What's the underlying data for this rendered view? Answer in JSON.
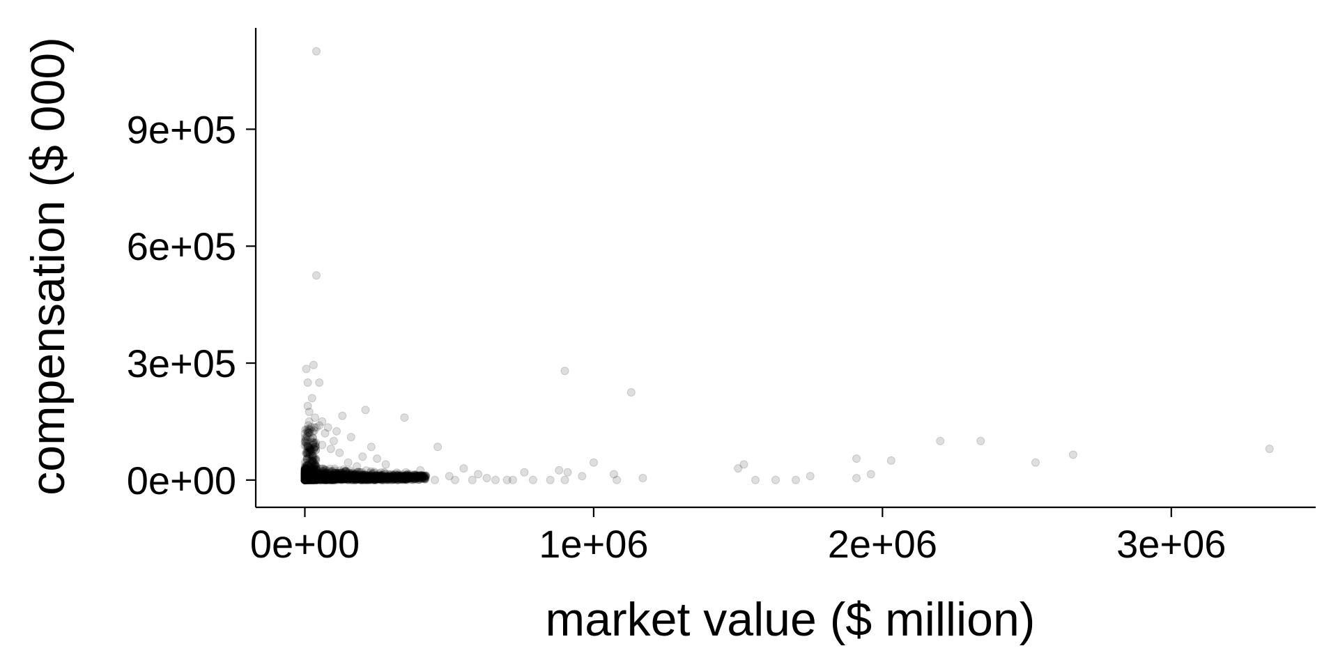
{
  "chart_data": {
    "type": "scatter",
    "title": "",
    "xlabel": "market value ($ million)",
    "ylabel": "compensation ($ 000)",
    "xlim": [
      -170000,
      3500000
    ],
    "ylim": [
      -70000,
      1160000
    ],
    "x_ticks": [
      {
        "value": 0,
        "label": "0e+00"
      },
      {
        "value": 1000000,
        "label": "1e+06"
      },
      {
        "value": 2000000,
        "label": "2e+06"
      },
      {
        "value": 3000000,
        "label": "3e+06"
      }
    ],
    "y_ticks": [
      {
        "value": 0,
        "label": "0e+00"
      },
      {
        "value": 300000,
        "label": "3e+05"
      },
      {
        "value": 600000,
        "label": "6e+05"
      },
      {
        "value": 900000,
        "label": "9e+05"
      }
    ],
    "grid": false,
    "legend": "none",
    "marker_color": "#000000",
    "marker_opacity": 0.13,
    "series": [
      {
        "points": [
          [
            40000,
            1100000
          ],
          [
            40000,
            525000
          ],
          [
            30000,
            295000
          ],
          [
            5000,
            285000
          ],
          [
            10000,
            250000
          ],
          [
            50000,
            250000
          ],
          [
            25000,
            210000
          ],
          [
            10000,
            190000
          ],
          [
            15000,
            175000
          ],
          [
            60000,
            150000
          ],
          [
            130000,
            165000
          ],
          [
            210000,
            180000
          ],
          [
            345000,
            160000
          ],
          [
            160000,
            110000
          ],
          [
            100000,
            100000
          ],
          [
            230000,
            85000
          ],
          [
            460000,
            85000
          ],
          [
            900000,
            280000
          ],
          [
            1130000,
            225000
          ],
          [
            1000000,
            45000
          ],
          [
            1070000,
            15000
          ],
          [
            1080000,
            0
          ],
          [
            1170000,
            5000
          ],
          [
            880000,
            25000
          ],
          [
            910000,
            20000
          ],
          [
            900000,
            0
          ],
          [
            960000,
            10000
          ],
          [
            760000,
            20000
          ],
          [
            790000,
            0
          ],
          [
            850000,
            0
          ],
          [
            700000,
            0
          ],
          [
            720000,
            0
          ],
          [
            1520000,
            40000
          ],
          [
            1500000,
            30000
          ],
          [
            1560000,
            0
          ],
          [
            1630000,
            0
          ],
          [
            1700000,
            0
          ],
          [
            1750000,
            10000
          ],
          [
            1910000,
            55000
          ],
          [
            1910000,
            5000
          ],
          [
            1960000,
            15000
          ],
          [
            2030000,
            50000
          ],
          [
            2200000,
            100000
          ],
          [
            2340000,
            100000
          ],
          [
            2530000,
            45000
          ],
          [
            2660000,
            65000
          ],
          [
            3340000,
            80000
          ],
          [
            550000,
            30000
          ],
          [
            600000,
            15000
          ],
          [
            630000,
            5000
          ],
          [
            500000,
            10000
          ],
          [
            450000,
            0
          ],
          [
            520000,
            0
          ],
          [
            580000,
            0
          ],
          [
            660000,
            0
          ],
          [
            400000,
            25000
          ],
          [
            350000,
            20000
          ],
          [
            300000,
            15000
          ],
          [
            280000,
            40000
          ],
          [
            250000,
            55000
          ],
          [
            200000,
            60000
          ],
          [
            180000,
            35000
          ],
          [
            150000,
            45000
          ],
          [
            120000,
            70000
          ],
          [
            90000,
            80000
          ],
          [
            70000,
            120000
          ],
          [
            60000,
            90000
          ],
          [
            50000,
            140000
          ],
          [
            20000,
            130000
          ],
          [
            10000,
            110000
          ],
          [
            5000,
            95000
          ],
          [
            15000,
            150000
          ],
          [
            35000,
            160000
          ],
          [
            80000,
            135000
          ],
          [
            110000,
            125000
          ]
        ]
      }
    ]
  }
}
